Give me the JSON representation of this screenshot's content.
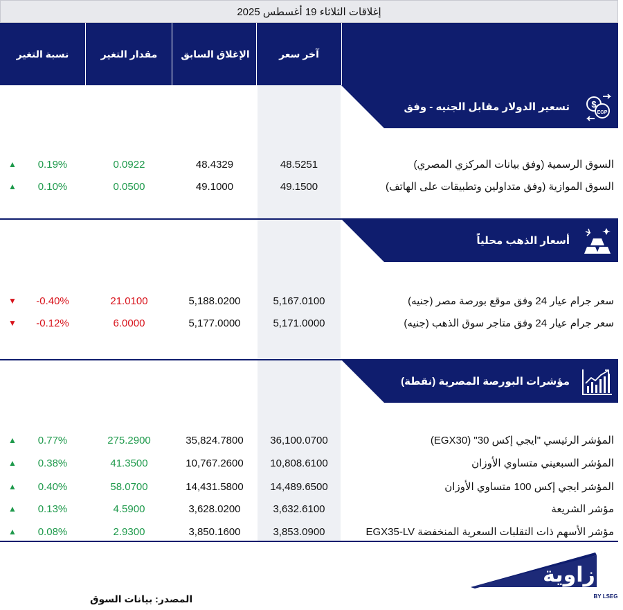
{
  "title": "إغلاقات الثلاثاء 19 أغسطس 2025",
  "headers": {
    "last": "آخر سعر",
    "prev": "الإغلاق السابق",
    "change": "مقدار التغير",
    "pct": "نسبة التغير"
  },
  "colors": {
    "navy": "#0f1d6e",
    "up": "#1f9a4c",
    "down": "#d8141c"
  },
  "sections": [
    {
      "title": "تسعير  الدولار مقابل الجنيه - وفق",
      "icon": "dollar-egp-exchange-icon",
      "rows": [
        {
          "name": "السوق الرسمية (وفق بيانات المركزي المصري)",
          "last": "48.5251",
          "prev": "48.4329",
          "change": "0.0922",
          "pct": "0.19%",
          "dir": "up",
          "arrow": "▲"
        },
        {
          "name": "السوق الموازية (وفق متداولين وتطبيقات على الهاتف)",
          "last": "49.1500",
          "prev": "49.1000",
          "change": "0.0500",
          "pct": "0.10%",
          "dir": "up",
          "arrow": "▲"
        }
      ]
    },
    {
      "title": "أسعار الذهب محلياً",
      "icon": "gold-bars-icon",
      "rows": [
        {
          "name": "سعر جرام عيار 24 وفق موقع بورصة مصر (جنيه)",
          "last": "5,167.0100",
          "prev": "5,188.0200",
          "change": "21.0100",
          "pct": "-0.40%",
          "dir": "down",
          "arrow": "▼"
        },
        {
          "name": "سعر جرام عيار 24 وفق متاجر سوق الذهب (جنيه)",
          "last": "5,171.0000",
          "prev": "5,177.0000",
          "change": "6.0000",
          "pct": "-0.12%",
          "dir": "down",
          "arrow": "▼"
        }
      ]
    },
    {
      "title": "مؤشرات البورصة المصرية (نقطة)",
      "icon": "stock-chart-icon",
      "rows": [
        {
          "name": "المؤشر الرئيسي \"ايجي إكس 30\" (EGX30)",
          "last": "36,100.0700",
          "prev": "35,824.7800",
          "change": "275.2900",
          "pct": "0.77%",
          "dir": "up",
          "arrow": "▲"
        },
        {
          "name": "المؤشر السبعيني متساوي الأوزان",
          "last": "10,808.6100",
          "prev": "10,767.2600",
          "change": "41.3500",
          "pct": "0.38%",
          "dir": "up",
          "arrow": "▲"
        },
        {
          "name": "المؤشر ايجي إكس 100 متساوي الأوزان",
          "last": "14,489.6500",
          "prev": "14,431.5800",
          "change": "58.0700",
          "pct": "0.40%",
          "dir": "up",
          "arrow": "▲"
        },
        {
          "name": "مؤشر الشريعة",
          "last": "3,632.6100",
          "prev": "3,628.0200",
          "change": "4.5900",
          "pct": "0.13%",
          "dir": "up",
          "arrow": "▲"
        },
        {
          "name": "مؤشر الأسهم ذات التقلبات السعرية المنخفضة EGX35-LV",
          "last": "3,853.0900",
          "prev": "3,850.1600",
          "change": "2.9300",
          "pct": "0.08%",
          "dir": "up",
          "arrow": "▲"
        }
      ]
    }
  ],
  "footer": {
    "source": "المصدر: بيانات السوق"
  },
  "logo": {
    "text": "زاوية",
    "sub": "BY LSEG"
  }
}
